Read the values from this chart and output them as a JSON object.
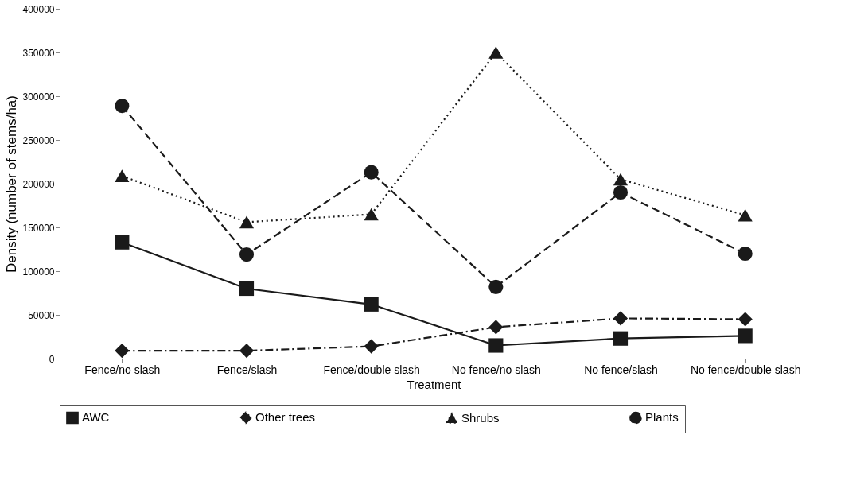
{
  "chart_data": {
    "type": "line",
    "xlabel": "Treatment",
    "ylabel": "Density (number of stems/ha)",
    "categories": [
      "Fence/no slash",
      "Fence/slash",
      "Fence/double slash",
      "No fence/no slash",
      "No fence/slash",
      "No fence/double slash"
    ],
    "ylim": [
      0,
      400000
    ],
    "yticks": [
      0,
      50000,
      100000,
      150000,
      200000,
      250000,
      300000,
      350000,
      400000
    ],
    "grid": false,
    "legend": "bottom",
    "series": [
      {
        "name": "AWC",
        "color": "#1a1a1a",
        "marker": "square",
        "line_style": "solid",
        "values": [
          133000,
          80000,
          62000,
          15000,
          23000,
          26000
        ]
      },
      {
        "name": "Other trees",
        "color": "#1a1a1a",
        "marker": "diamond",
        "line_style": "dashdot",
        "values": [
          9000,
          9000,
          14000,
          36000,
          46000,
          45000
        ]
      },
      {
        "name": "Shrubs",
        "color": "#1a1a1a",
        "marker": "triangle",
        "line_style": "dotted",
        "values": [
          209000,
          156000,
          165000,
          350000,
          205000,
          164000
        ]
      },
      {
        "name": "Plants",
        "color": "#1a1a1a",
        "marker": "circle",
        "line_style": "dashed",
        "values": [
          289000,
          119000,
          213000,
          82000,
          190000,
          120000
        ]
      }
    ]
  }
}
